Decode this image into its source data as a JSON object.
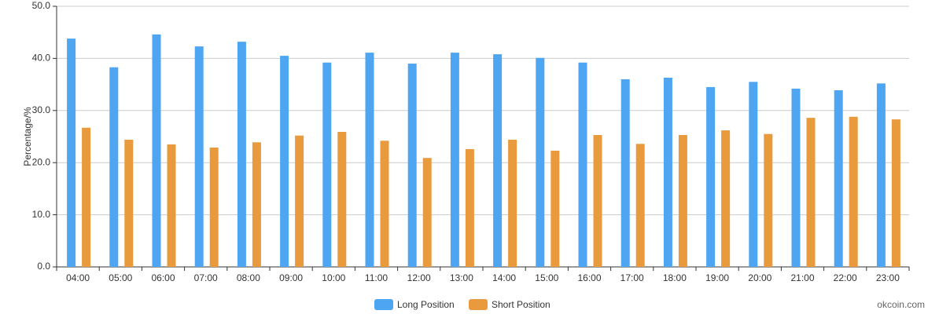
{
  "chart_data": {
    "type": "bar",
    "y_label": "Percentage/%",
    "watermark": "okcoin.com",
    "categories": [
      "04:00",
      "05:00",
      "06:00",
      "07:00",
      "08:00",
      "09:00",
      "10:00",
      "11:00",
      "12:00",
      "13:00",
      "14:00",
      "15:00",
      "16:00",
      "17:00",
      "18:00",
      "19:00",
      "20:00",
      "21:00",
      "22:00",
      "23:00"
    ],
    "series": [
      {
        "name": "Long Position",
        "color": "#4ea6f3",
        "values": [
          43.8,
          38.3,
          44.6,
          42.3,
          43.2,
          40.5,
          39.2,
          41.1,
          39.0,
          41.1,
          40.8,
          40.1,
          39.2,
          36.0,
          36.3,
          34.5,
          35.5,
          34.2,
          33.9,
          35.2
        ]
      },
      {
        "name": "Short Position",
        "color": "#e89a3c",
        "values": [
          26.7,
          24.4,
          23.5,
          22.9,
          23.9,
          25.2,
          25.9,
          24.2,
          20.9,
          22.6,
          24.4,
          22.3,
          25.3,
          23.6,
          25.3,
          26.2,
          25.5,
          28.6,
          28.8,
          28.3
        ]
      }
    ],
    "ylim": [
      0,
      50
    ],
    "yticks": [
      {
        "value": 0,
        "label": "0.0"
      },
      {
        "value": 10,
        "label": "10.0"
      },
      {
        "value": 20,
        "label": "20.0"
      },
      {
        "value": 30,
        "label": "30.0"
      },
      {
        "value": 40,
        "label": "40.0"
      },
      {
        "value": 50,
        "label": "50.0"
      }
    ],
    "grid": true
  }
}
